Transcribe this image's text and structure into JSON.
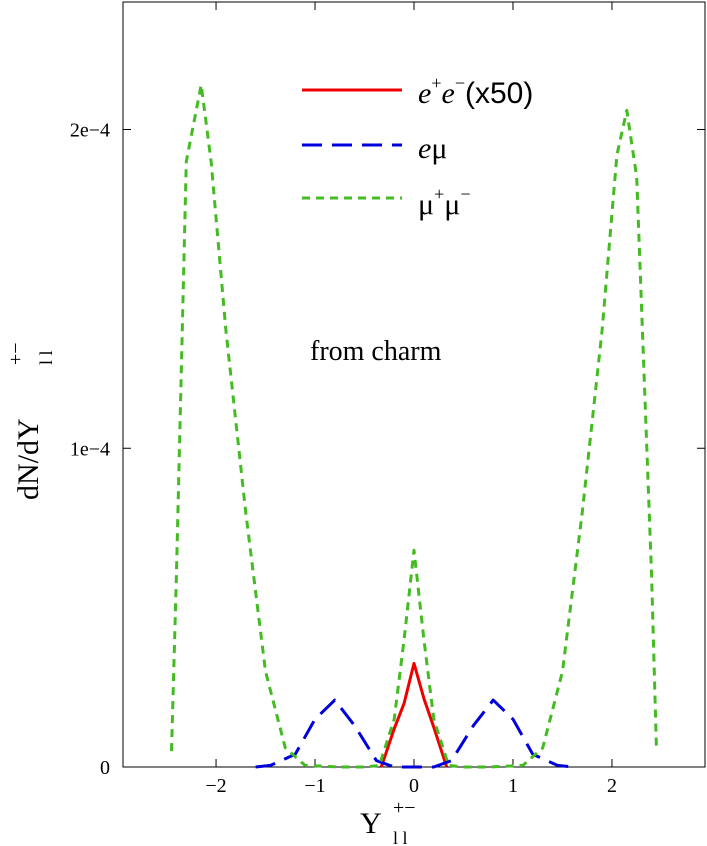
{
  "chart_data": {
    "type": "line",
    "annotation": "from charm",
    "xlim": [
      -2.94,
      2.94
    ],
    "ylim": [
      0,
      0.00024
    ],
    "x_ticks": [
      -2,
      -1,
      0,
      1,
      2
    ],
    "x_tick_labels": [
      "−2",
      "−1",
      "0",
      "1",
      "2"
    ],
    "y_ticks": [
      0,
      0.0001,
      0.0002
    ],
    "y_tick_labels": [
      "0",
      "1e−4",
      "2e−4"
    ],
    "xlabel": {
      "main": "Y",
      "sup": "+−",
      "sub": "l l"
    },
    "ylabel": {
      "main": "dN/dY",
      "sup": "+−",
      "sub": "l l"
    },
    "grid": false,
    "legend_position": "top-center",
    "series": [
      {
        "name": "e⁺e⁻(x50)",
        "color": "#ee0000",
        "style": "solid",
        "points": [
          [
            -0.33,
            0.0
          ],
          [
            -0.2,
            1.2e-05
          ],
          [
            -0.1,
            2e-05
          ],
          [
            0.0,
            3.25e-05
          ],
          [
            0.1,
            2.15e-05
          ],
          [
            0.2,
            1.25e-05
          ],
          [
            0.33,
            0.0
          ]
        ]
      },
      {
        "name": "eμ",
        "color": "#0000dd",
        "style": "dashed",
        "points": [
          [
            -1.6,
            0.0
          ],
          [
            -1.45,
            5e-07
          ],
          [
            -1.2,
            4e-06
          ],
          [
            -1.0,
            1.5e-05
          ],
          [
            -0.8,
            2.1e-05
          ],
          [
            -0.6,
            1.3e-05
          ],
          [
            -0.38,
            2e-06
          ],
          [
            -0.2,
            0.0
          ],
          [
            0.2,
            0.0
          ],
          [
            0.38,
            2e-06
          ],
          [
            0.6,
            1.3e-05
          ],
          [
            0.8,
            2.1e-05
          ],
          [
            1.0,
            1.5e-05
          ],
          [
            1.2,
            4e-06
          ],
          [
            1.45,
            5e-07
          ],
          [
            1.6,
            0.0
          ]
        ]
      },
      {
        "name": "μ⁺μ⁻",
        "color": "#44bb22",
        "style": "dashed",
        "points": [
          [
            -2.45,
            5e-06
          ],
          [
            -2.4,
            6e-05
          ],
          [
            -2.3,
            0.00019
          ],
          [
            -2.15,
            0.000214
          ],
          [
            -2.05,
            0.00019
          ],
          [
            -1.9,
            0.000137
          ],
          [
            -1.7,
            8e-05
          ],
          [
            -1.5,
            3e-05
          ],
          [
            -1.3,
            6e-06
          ],
          [
            -1.1,
            5e-07
          ],
          [
            -0.75,
            0.0
          ],
          [
            -0.5,
            0.0
          ],
          [
            -0.35,
            5e-07
          ],
          [
            -0.2,
            1.5e-05
          ],
          [
            -0.1,
            4e-05
          ],
          [
            0.0,
            6.8e-05
          ],
          [
            0.1,
            4e-05
          ],
          [
            0.2,
            1.5e-05
          ],
          [
            0.35,
            5e-07
          ],
          [
            0.5,
            0.0
          ],
          [
            0.75,
            0.0
          ],
          [
            1.1,
            5e-07
          ],
          [
            1.3,
            6e-06
          ],
          [
            1.5,
            3e-05
          ],
          [
            1.7,
            8e-05
          ],
          [
            1.9,
            0.000137
          ],
          [
            2.05,
            0.000192
          ],
          [
            2.15,
            0.000206
          ],
          [
            2.25,
            0.000185
          ],
          [
            2.4,
            6e-05
          ],
          [
            2.45,
            5e-06
          ]
        ]
      }
    ]
  }
}
